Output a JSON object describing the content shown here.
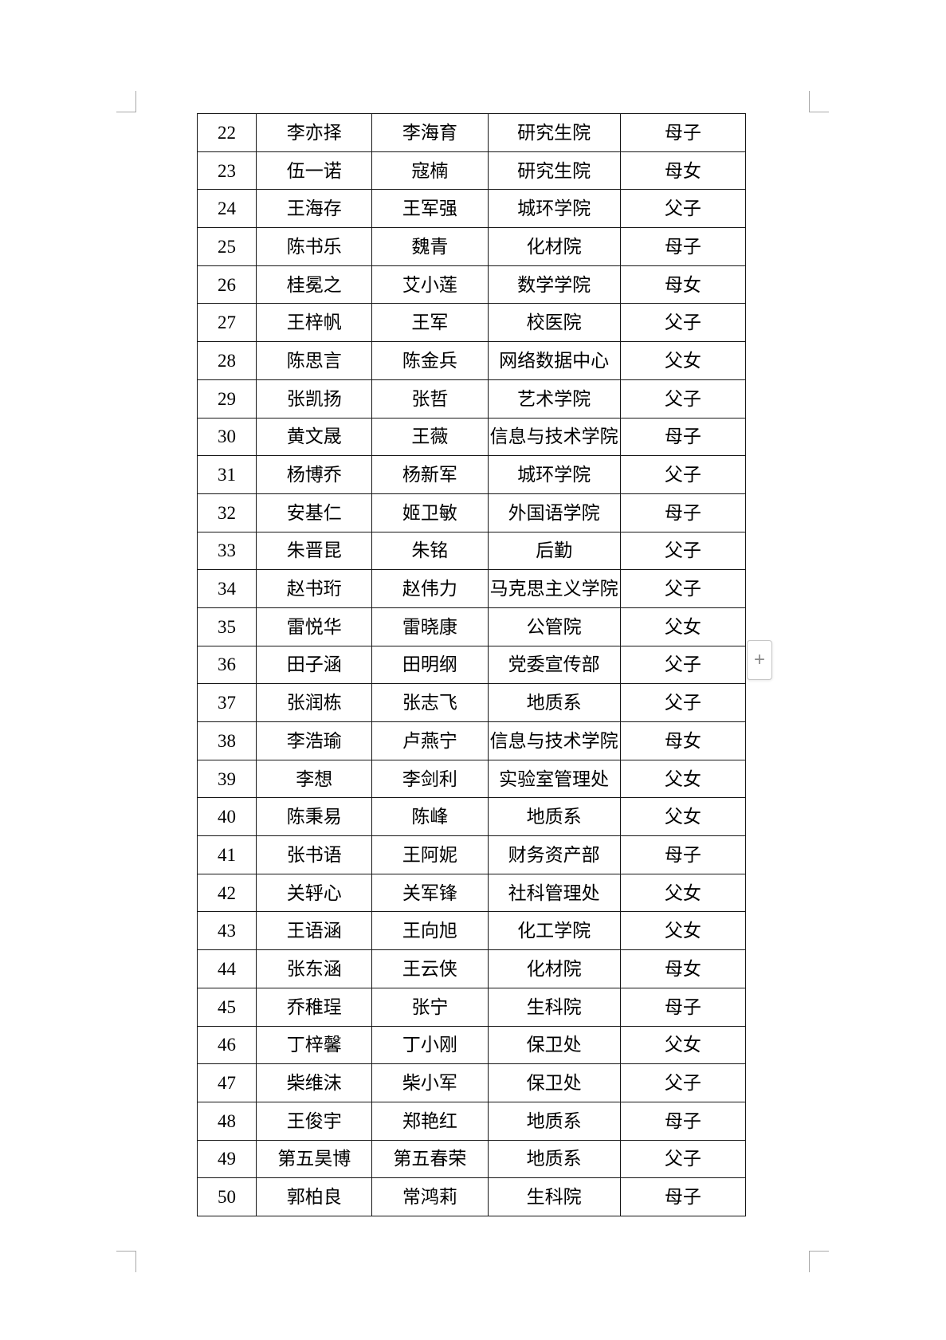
{
  "table": {
    "rows": [
      [
        "22",
        "李亦择",
        "李海育",
        "研究生院",
        "母子"
      ],
      [
        "23",
        "伍一诺",
        "寇楠",
        "研究生院",
        "母女"
      ],
      [
        "24",
        "王海存",
        "王军强",
        "城环学院",
        "父子"
      ],
      [
        "25",
        "陈书乐",
        "魏青",
        "化材院",
        "母子"
      ],
      [
        "26",
        "桂冕之",
        "艾小莲",
        "数学学院",
        "母女"
      ],
      [
        "27",
        "王梓帆",
        "王军",
        "校医院",
        "父子"
      ],
      [
        "28",
        "陈思言",
        "陈金兵",
        "网络数据中心",
        "父女"
      ],
      [
        "29",
        "张凯扬",
        "张哲",
        "艺术学院",
        "父子"
      ],
      [
        "30",
        "黄文晟",
        "王薇",
        "信息与技术学院",
        "母子"
      ],
      [
        "31",
        "杨博乔",
        "杨新军",
        "城环学院",
        "父子"
      ],
      [
        "32",
        "安基仁",
        "姬卫敏",
        "外国语学院",
        "母子"
      ],
      [
        "33",
        "朱晋昆",
        "朱铭",
        "后勤",
        "父子"
      ],
      [
        "34",
        "赵书珩",
        "赵伟力",
        "马克思主义学院",
        "父子"
      ],
      [
        "35",
        "雷悦华",
        "雷晓康",
        "公管院",
        "父女"
      ],
      [
        "36",
        "田子涵",
        "田明纲",
        "党委宣传部",
        "父子"
      ],
      [
        "37",
        "张润栋",
        "张志飞",
        "地质系",
        "父子"
      ],
      [
        "38",
        "李浩瑜",
        "卢燕宁",
        "信息与技术学院",
        "母女"
      ],
      [
        "39",
        "李想",
        "李剑利",
        "实验室管理处",
        "父女"
      ],
      [
        "40",
        "陈秉易",
        "陈峰",
        "地质系",
        "父女"
      ],
      [
        "41",
        "张书语",
        "王阿妮",
        "财务资产部",
        "母子"
      ],
      [
        "42",
        "关轷心",
        "关军锋",
        "社科管理处",
        "父女"
      ],
      [
        "43",
        "王语涵",
        "王向旭",
        "化工学院",
        "父女"
      ],
      [
        "44",
        "张东涵",
        "王云侠",
        "化材院",
        "母女"
      ],
      [
        "45",
        "乔稚珵",
        "张宁",
        "生科院",
        "母子"
      ],
      [
        "46",
        "丁梓馨",
        "丁小刚",
        "保卫处",
        "父女"
      ],
      [
        "47",
        "柴维沫",
        "柴小军",
        "保卫处",
        "父子"
      ],
      [
        "48",
        "王俊宇",
        "郑艳红",
        "地质系",
        "母子"
      ],
      [
        "49",
        "第五昊博",
        "第五春荣",
        "地质系",
        "父子"
      ],
      [
        "50",
        "郭柏良",
        "常鸿莉",
        "生科院",
        "母子"
      ]
    ]
  },
  "controls": {
    "add_button_label": "+"
  },
  "colors": {
    "table_border": "#161616",
    "crop_mark": "#a9a9a9",
    "add_button_border": "#c6c6c6",
    "add_button_glyph": "#8a8a8a"
  }
}
